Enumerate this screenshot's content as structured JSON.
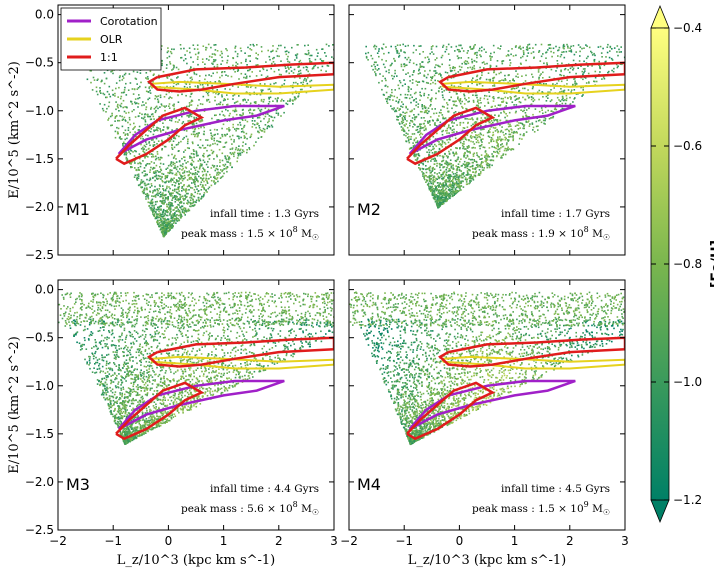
{
  "chart_data": {
    "type": "scatter",
    "description_axes": {
      "xlabel": "L_z/10^3 (kpc km s^-1)",
      "ylabel": "E/10^5 (km^2 s^-2)",
      "xlim": [
        -2,
        3
      ],
      "ylim": [
        -2.5,
        0.1
      ],
      "xticks": [
        -2,
        -1,
        0,
        1,
        2,
        3
      ],
      "yticks": [
        0.0,
        -0.5,
        -1.0,
        -1.5,
        -2.0,
        -2.5
      ]
    },
    "colorbar": {
      "label": "[Fe/H]",
      "range": [
        -1.2,
        -0.4
      ],
      "ticks": [
        -0.4,
        -0.6,
        -0.8,
        -1.0,
        -1.2
      ],
      "tick_labels": [
        "−0.4",
        "−0.6",
        "−0.8",
        "−1.0",
        "−1.2"
      ]
    },
    "legend": {
      "placement": "top-left",
      "entries": [
        {
          "label": "Corotation",
          "color": "#a020c8"
        },
        {
          "label": "OLR",
          "color": "#e6d21e"
        },
        {
          "label": "1:1",
          "color": "#e01c1c"
        }
      ]
    },
    "panels": [
      {
        "name": "M1",
        "infall_label": "infall time",
        "infall_value": "1.3 Gyrs",
        "mass_label": "peak mass",
        "mass_mantissa": "1.5",
        "mass_exp": "8",
        "mass_unit": "M",
        "tip_E": -2.3,
        "tip_Lz": -0.1,
        "metal_rich": 0.1
      },
      {
        "name": "M2",
        "infall_label": "infall time",
        "infall_value": "1.7 Gyrs",
        "mass_label": "peak mass",
        "mass_mantissa": "1.9",
        "mass_exp": "8",
        "mass_unit": "M",
        "tip_E": -2.0,
        "tip_Lz": -0.4,
        "metal_rich": 0.25
      },
      {
        "name": "M3",
        "infall_label": "infall time",
        "infall_value": "4.4 Gyrs",
        "mass_label": "peak mass",
        "mass_mantissa": "5.6",
        "mass_exp": "8",
        "mass_unit": "M",
        "tip_E": -1.6,
        "tip_Lz": -0.8,
        "metal_rich": 0.45
      },
      {
        "name": "M4",
        "infall_label": "infall time",
        "infall_value": "4.5 Gyrs",
        "mass_label": "peak mass",
        "mass_mantissa": "1.5",
        "mass_exp": "9",
        "mass_unit": "M",
        "tip_E": -1.6,
        "tip_Lz": -0.9,
        "metal_rich": 0.7
      }
    ],
    "contours": {
      "corotation": [
        [
          -0.9,
          -1.45
        ],
        [
          -0.6,
          -1.25
        ],
        [
          -0.2,
          -1.1
        ],
        [
          0.5,
          -1.0
        ],
        [
          1.2,
          -0.95
        ],
        [
          2.1,
          -0.95
        ],
        [
          1.6,
          -1.05
        ],
        [
          1.0,
          -1.1
        ],
        [
          0.2,
          -1.2
        ],
        [
          -0.4,
          -1.3
        ],
        [
          -0.9,
          -1.45
        ]
      ],
      "olr": [
        [
          -0.3,
          -0.75
        ],
        [
          0.5,
          -0.78
        ],
        [
          1.2,
          -0.82
        ],
        [
          2.0,
          -0.82
        ],
        [
          3.0,
          -0.78
        ],
        [
          3.0,
          -0.73
        ],
        [
          2.0,
          -0.75
        ],
        [
          1.0,
          -0.72
        ],
        [
          0.2,
          -0.7
        ],
        [
          -0.3,
          -0.72
        ],
        [
          -0.3,
          -0.75
        ]
      ],
      "one_one_upper": [
        [
          -0.2,
          -0.65
        ],
        [
          0.5,
          -0.57
        ],
        [
          1.4,
          -0.55
        ],
        [
          2.2,
          -0.52
        ],
        [
          3.0,
          -0.5
        ],
        [
          3.0,
          -0.62
        ],
        [
          2.0,
          -0.65
        ],
        [
          1.2,
          -0.72
        ],
        [
          0.6,
          -0.78
        ],
        [
          0.2,
          -0.8
        ],
        [
          -0.2,
          -0.78
        ],
        [
          -0.35,
          -0.7
        ],
        [
          -0.2,
          -0.65
        ]
      ],
      "one_one_lower": [
        [
          -0.95,
          -1.5
        ],
        [
          -0.7,
          -1.35
        ],
        [
          -0.4,
          -1.2
        ],
        [
          -0.1,
          -1.05
        ],
        [
          0.3,
          -0.97
        ],
        [
          0.6,
          -1.07
        ],
        [
          0.3,
          -1.15
        ],
        [
          0.0,
          -1.3
        ],
        [
          -0.4,
          -1.45
        ],
        [
          -0.8,
          -1.55
        ],
        [
          -0.95,
          -1.5
        ]
      ]
    }
  }
}
